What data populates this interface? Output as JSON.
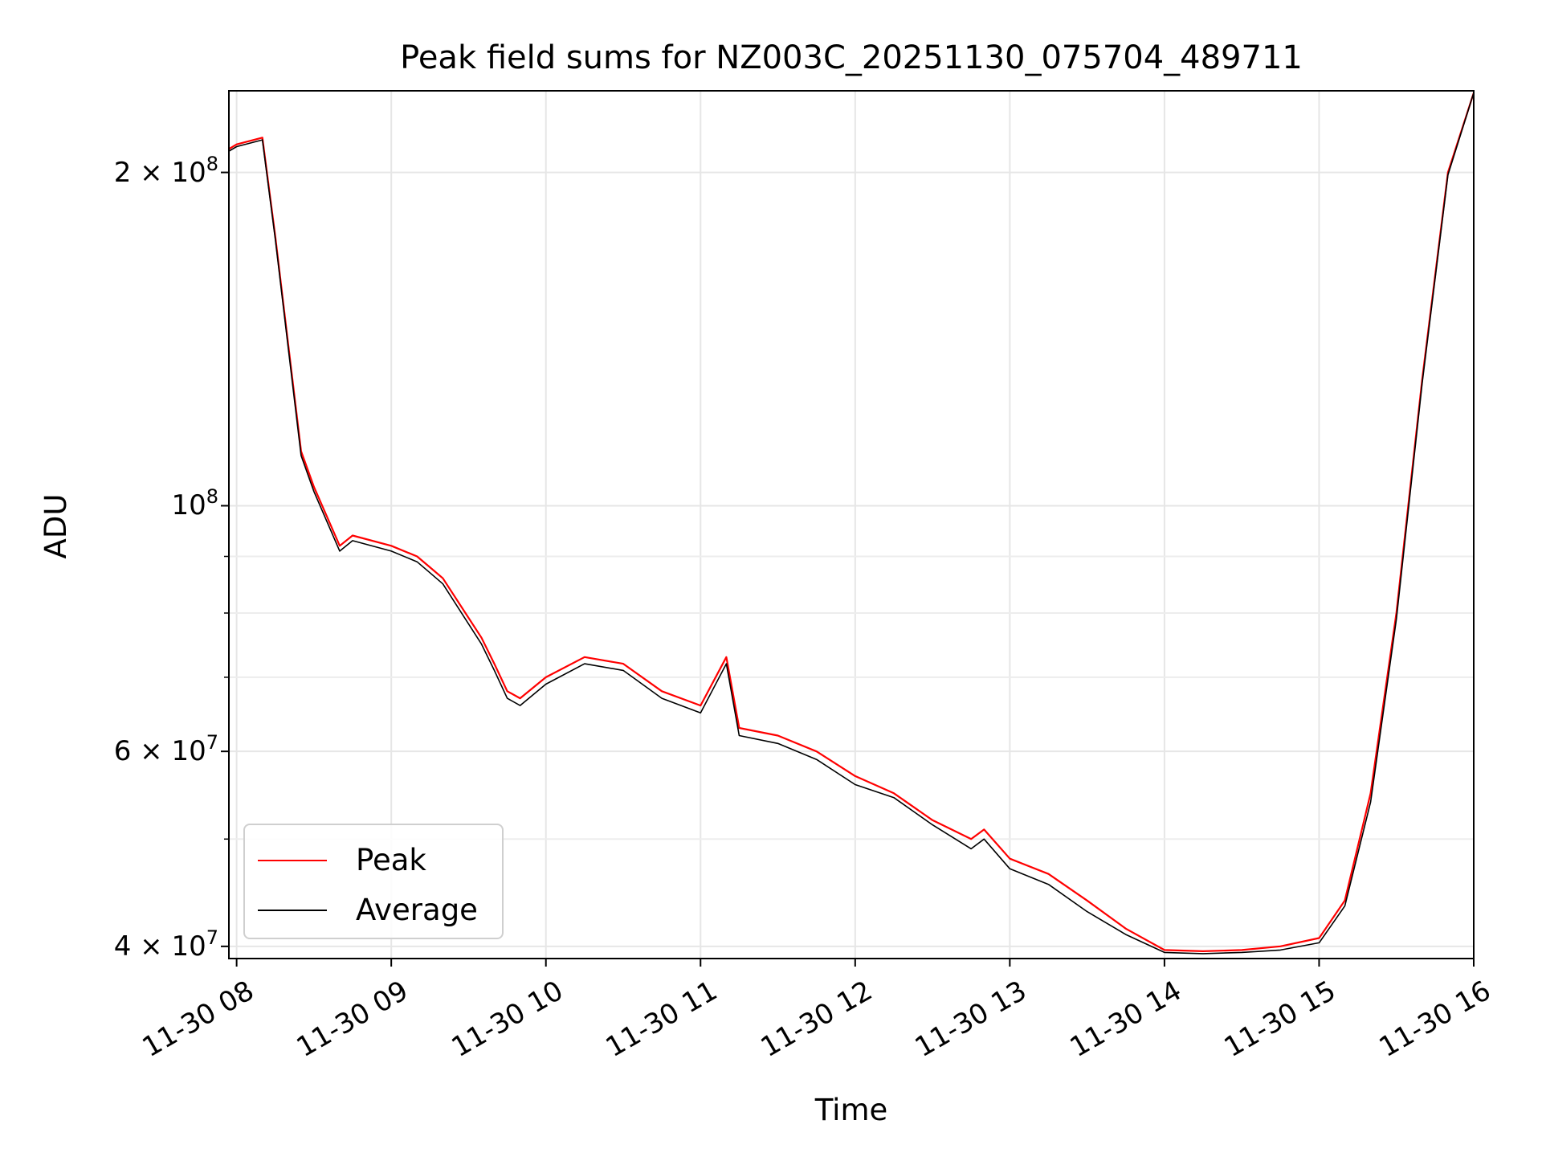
{
  "chart_data": {
    "type": "line",
    "title": "Peak field sums for NZ003C_20251130_075704_489711",
    "xlabel": "Time",
    "ylabel": "ADU",
    "y_scale": "log",
    "grid": true,
    "legend_position": "lower-left",
    "x_range": [
      "2025-11-30 07:57",
      "2025-11-30 16:00"
    ],
    "ylim": [
      39000000,
      237000000
    ],
    "x_tick_labels": [
      "11-30 08",
      "11-30 09",
      "11-30 10",
      "11-30 11",
      "11-30 12",
      "11-30 13",
      "11-30 14",
      "11-30 15",
      "11-30 16"
    ],
    "x_tick_hours": [
      8,
      9,
      10,
      11,
      12,
      13,
      14,
      15,
      16
    ],
    "y_tick_labels": [
      {
        "value": 200000000,
        "mantissa": "2 × 10",
        "exp": "8"
      },
      {
        "value": 100000000,
        "mantissa": "10",
        "exp": "8"
      },
      {
        "value": 60000000,
        "mantissa": "6 × 10",
        "exp": "7"
      },
      {
        "value": 40000000,
        "mantissa": "4 × 10",
        "exp": "7"
      }
    ],
    "y_minor_ticks": [
      50000000,
      70000000,
      80000000,
      90000000
    ],
    "series": [
      {
        "name": "Peak",
        "color": "#ff0000",
        "x": [
          "2025-11-30 07:57",
          "2025-11-30 08:00",
          "2025-11-30 08:10",
          "2025-11-30 08:15",
          "2025-11-30 08:20",
          "2025-11-30 08:25",
          "2025-11-30 08:30",
          "2025-11-30 08:40",
          "2025-11-30 08:45",
          "2025-11-30 09:00",
          "2025-11-30 09:10",
          "2025-11-30 09:15",
          "2025-11-30 09:20",
          "2025-11-30 09:35",
          "2025-11-30 09:40",
          "2025-11-30 09:45",
          "2025-11-30 09:50",
          "2025-11-30 10:00",
          "2025-11-30 10:15",
          "2025-11-30 10:30",
          "2025-11-30 10:45",
          "2025-11-30 11:00",
          "2025-11-30 11:10",
          "2025-11-30 11:15",
          "2025-11-30 11:30",
          "2025-11-30 11:45",
          "2025-11-30 12:00",
          "2025-11-30 12:15",
          "2025-11-30 12:30",
          "2025-11-30 12:45",
          "2025-11-30 12:50",
          "2025-11-30 13:00",
          "2025-11-30 13:15",
          "2025-11-30 13:30",
          "2025-11-30 13:45",
          "2025-11-30 14:00",
          "2025-11-30 14:15",
          "2025-11-30 14:30",
          "2025-11-30 14:45",
          "2025-11-30 15:00",
          "2025-11-30 15:10",
          "2025-11-30 15:20",
          "2025-11-30 15:30",
          "2025-11-30 15:40",
          "2025-11-30 15:50",
          "2025-11-30 16:00"
        ],
        "values": [
          210000000,
          212000000,
          215000000,
          175000000,
          140000000,
          112000000,
          104000000,
          92000000,
          94000000,
          92000000,
          90000000,
          88000000,
          86000000,
          76000000,
          72000000,
          68000000,
          67000000,
          70000000,
          73000000,
          72000000,
          68000000,
          66000000,
          73000000,
          63000000,
          62000000,
          60000000,
          57000000,
          55000000,
          52000000,
          50000000,
          51000000,
          48000000,
          46500000,
          44000000,
          41500000,
          39700000,
          39600000,
          39700000,
          40000000,
          40700000,
          44000000,
          55000000,
          80000000,
          130000000,
          200000000,
          236000000
        ]
      },
      {
        "name": "Average",
        "color": "#000000",
        "x": [
          "2025-11-30 07:57",
          "2025-11-30 08:00",
          "2025-11-30 08:10",
          "2025-11-30 08:15",
          "2025-11-30 08:20",
          "2025-11-30 08:25",
          "2025-11-30 08:30",
          "2025-11-30 08:40",
          "2025-11-30 08:45",
          "2025-11-30 09:00",
          "2025-11-30 09:10",
          "2025-11-30 09:15",
          "2025-11-30 09:20",
          "2025-11-30 09:35",
          "2025-11-30 09:40",
          "2025-11-30 09:45",
          "2025-11-30 09:50",
          "2025-11-30 10:00",
          "2025-11-30 10:15",
          "2025-11-30 10:30",
          "2025-11-30 10:45",
          "2025-11-30 11:00",
          "2025-11-30 11:10",
          "2025-11-30 11:15",
          "2025-11-30 11:30",
          "2025-11-30 11:45",
          "2025-11-30 12:00",
          "2025-11-30 12:15",
          "2025-11-30 12:30",
          "2025-11-30 12:45",
          "2025-11-30 12:50",
          "2025-11-30 13:00",
          "2025-11-30 13:15",
          "2025-11-30 13:30",
          "2025-11-30 13:45",
          "2025-11-30 14:00",
          "2025-11-30 14:15",
          "2025-11-30 14:30",
          "2025-11-30 14:45",
          "2025-11-30 15:00",
          "2025-11-30 15:10",
          "2025-11-30 15:20",
          "2025-11-30 15:30",
          "2025-11-30 15:40",
          "2025-11-30 15:50",
          "2025-11-30 16:00"
        ],
        "values": [
          209000000,
          211000000,
          214000000,
          174000000,
          139000000,
          111000000,
          103000000,
          91000000,
          93000000,
          91000000,
          89000000,
          87000000,
          85000000,
          75000000,
          71000000,
          67000000,
          66000000,
          69000000,
          72000000,
          71000000,
          67000000,
          65000000,
          72000000,
          62000000,
          61000000,
          59000000,
          56000000,
          54500000,
          51500000,
          49000000,
          50000000,
          47000000,
          45500000,
          43000000,
          41000000,
          39500000,
          39400000,
          39500000,
          39700000,
          40300000,
          43500000,
          54000000,
          79000000,
          129000000,
          199000000,
          236000000
        ]
      }
    ]
  }
}
